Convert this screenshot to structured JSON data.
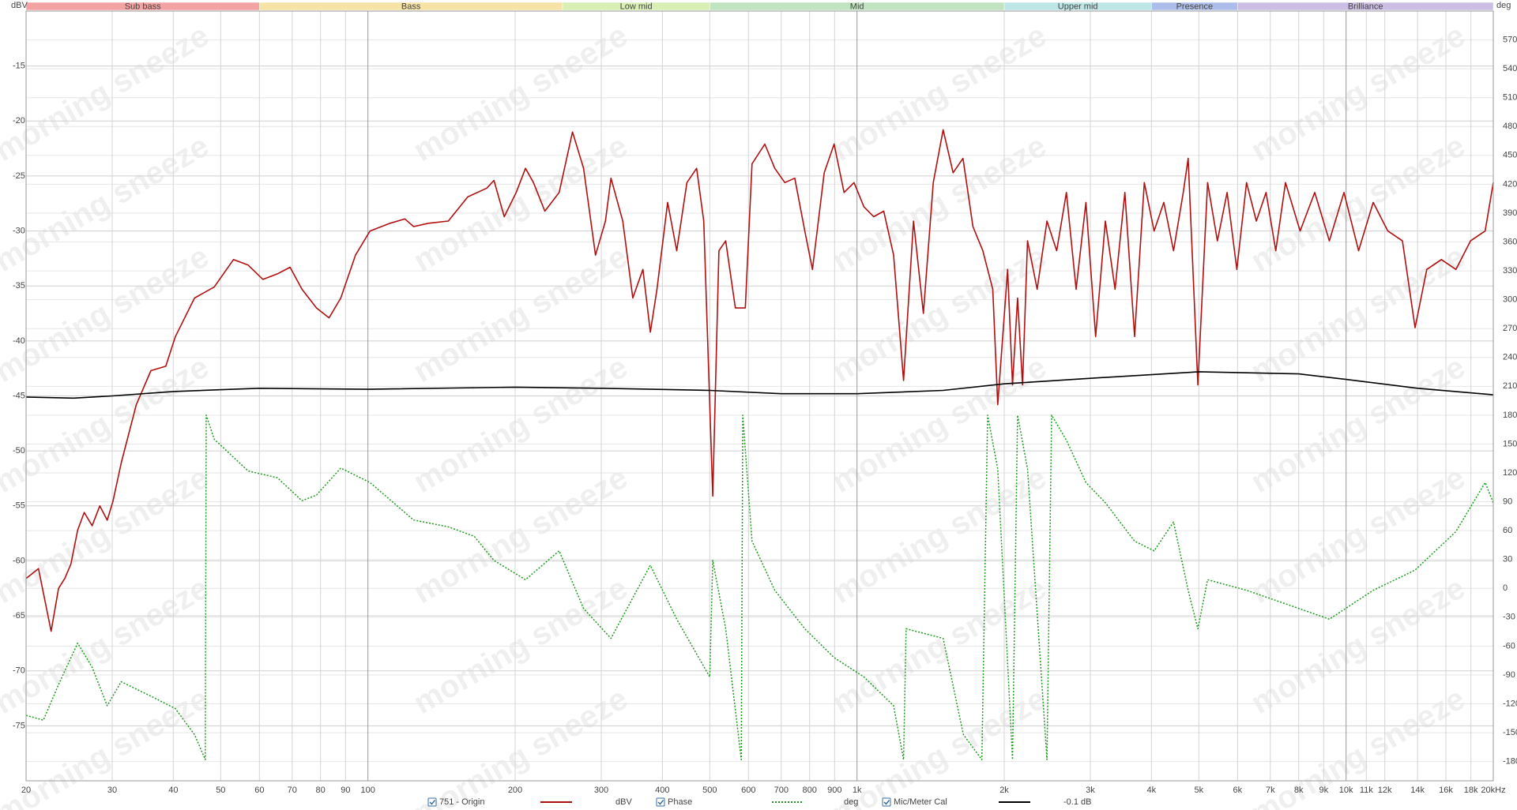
{
  "chart_data": {
    "type": "line",
    "ylabel": "dBV",
    "y2label": "deg",
    "watermark": "morning sneeze",
    "log_x": true,
    "grid": true,
    "xlim": [
      20,
      20000
    ],
    "ylim": [
      -80,
      -10
    ],
    "y2lim": [
      -200,
      600
    ],
    "xticks": [
      20,
      30,
      40,
      50,
      60,
      70,
      80,
      90,
      100,
      200,
      300,
      400,
      500,
      600,
      700,
      800,
      900,
      {
        "value": 1000,
        "label": "1k"
      },
      {
        "value": 2000,
        "label": "2k"
      },
      {
        "value": 3000,
        "label": "3k"
      },
      {
        "value": 4000,
        "label": "4k"
      },
      {
        "value": 5000,
        "label": "5k"
      },
      {
        "value": 6000,
        "label": "6k"
      },
      {
        "value": 7000,
        "label": "7k"
      },
      {
        "value": 8000,
        "label": "8k"
      },
      {
        "value": 9000,
        "label": "9k"
      },
      {
        "value": 10000,
        "label": "10k"
      },
      {
        "value": 11000,
        "label": "11k"
      },
      {
        "value": 12000,
        "label": "12k"
      },
      {
        "value": 14000,
        "label": "14k"
      },
      {
        "value": 16000,
        "label": "16k"
      },
      {
        "value": 18000,
        "label": "18k"
      },
      {
        "value": 20000,
        "label": "20kHz"
      }
    ],
    "yticks": [
      -75,
      -70,
      -65,
      -60,
      -55,
      -50,
      -45,
      -40,
      -35,
      -30,
      -25,
      -20,
      -15
    ],
    "y2ticks": [
      -180,
      -150,
      -120,
      -90,
      -60,
      -30,
      0,
      30,
      60,
      90,
      120,
      150,
      180,
      210,
      240,
      270,
      300,
      330,
      360,
      390,
      420,
      450,
      480,
      510,
      540,
      570
    ],
    "bands": [
      {
        "name": "Sub bass",
        "from": 20,
        "to": 60,
        "color": "#f4a3a3"
      },
      {
        "name": "Bass",
        "from": 60,
        "to": 250,
        "color": "#f7e3a6"
      },
      {
        "name": "Low mid",
        "from": 250,
        "to": 500,
        "color": "#d9efb4"
      },
      {
        "name": "Mid",
        "from": 500,
        "to": 2000,
        "color": "#bfe4bf"
      },
      {
        "name": "Upper mid",
        "from": 2000,
        "to": 4000,
        "color": "#bde6e6"
      },
      {
        "name": "Presence",
        "from": 4000,
        "to": 6000,
        "color": "#adbdea"
      },
      {
        "name": "Brilliance",
        "from": 6000,
        "to": 20000,
        "color": "#cbbde3"
      }
    ],
    "series": [
      {
        "name": "751 - Origin",
        "legend_note": "dBV",
        "color": "#b01010",
        "axis": "y",
        "dash": false,
        "x": [
          20,
          21.2,
          22.5,
          23.3,
          24,
          24.7,
          25.5,
          26.3,
          27.3,
          28.3,
          29.3,
          30.1,
          31.3,
          33.6,
          36,
          38.6,
          40.4,
          44.2,
          48.5,
          53.1,
          56.9,
          61,
          65.3,
          69.3,
          73.3,
          78.5,
          83.3,
          88,
          94.3,
          101,
          111,
          119,
          124,
          133,
          146,
          160,
          175,
          181,
          190,
          201,
          210,
          218,
          230,
          246,
          262,
          276,
          292,
          306,
          314,
          332,
          348,
          365,
          378,
          390,
          410,
          428,
          449,
          470,
          486,
          507,
          522,
          539,
          564,
          591,
          610,
          648,
          679,
          712,
          746,
          782,
          811,
          857,
          898,
          941,
          986,
          1033,
          1082,
          1134,
          1188,
          1245,
          1305,
          1367,
          1432,
          1500,
          1572,
          1647,
          1726,
          1808,
          1895,
          1940,
          2032,
          2080,
          2130,
          2180,
          2232,
          2336,
          2446,
          2560,
          2680,
          2806,
          2938,
          3076,
          3220,
          3371,
          3529,
          3695,
          3868,
          4050,
          4240,
          4438,
          4647,
          4755,
          4978,
          5211,
          5456,
          5712,
          5980,
          6260,
          6554,
          6861,
          7183,
          7520,
          8055,
          8629,
          9243,
          9901,
          10606,
          11361,
          12170,
          13037,
          13837,
          14620,
          15661,
          16776,
          17970,
          19250,
          20000
        ],
        "values": [
          -61.6,
          -60.7,
          -66.4,
          -62.5,
          -61.6,
          -60.3,
          -57.2,
          -55.6,
          -56.8,
          -55,
          -56.3,
          -54.6,
          -51.1,
          -45.8,
          -42.7,
          -42.3,
          -39.6,
          -36.1,
          -35.1,
          -32.6,
          -33.1,
          -34.4,
          -33.9,
          -33.3,
          -35.3,
          -37,
          -37.9,
          -36.1,
          -32.2,
          -30,
          -29.3,
          -28.9,
          -29.6,
          -29.3,
          -29.1,
          -26.9,
          -26.1,
          -25.4,
          -28.7,
          -26.5,
          -24.3,
          -25.6,
          -28.2,
          -26.5,
          -21,
          -24.3,
          -32.2,
          -29.1,
          -25.2,
          -29.1,
          -36.1,
          -33.5,
          -39.2,
          -35.3,
          -27.4,
          -31.8,
          -25.6,
          -24.3,
          -29.1,
          -54.1,
          -31.8,
          -30.9,
          -37,
          -37,
          -23.9,
          -22.1,
          -24.3,
          -25.6,
          -25.2,
          -30,
          -33.5,
          -24.7,
          -22.1,
          -26.5,
          -25.6,
          -27.8,
          -28.7,
          -28.2,
          -32.2,
          -43.6,
          -29.1,
          -37.5,
          -25.6,
          -20.8,
          -24.7,
          -23.4,
          -29.6,
          -31.8,
          -35.3,
          -45.8,
          -33.5,
          -44,
          -36.1,
          -44,
          -30.9,
          -35.3,
          -29.1,
          -31.8,
          -26.5,
          -35.3,
          -27.4,
          -39.6,
          -29.1,
          -35.3,
          -26.5,
          -39.6,
          -25.6,
          -30,
          -27.4,
          -31.8,
          -26.5,
          -23.4,
          -44,
          -25.6,
          -30.9,
          -26.5,
          -33.5,
          -25.6,
          -29.1,
          -26.5,
          -31.8,
          -25.6,
          -30,
          -26.5,
          -30.9,
          -26.5,
          -31.8,
          -27.4,
          -30,
          -30.9,
          -38.8,
          -33.5,
          -32.6,
          -33.5,
          -30.9,
          -30,
          -25.6
        ]
      },
      {
        "name": "Phase",
        "legend_note": "deg",
        "color": "#1f9a1f",
        "axis": "y2",
        "dash": true,
        "x": [
          20,
          21.7,
          23.3,
          25.5,
          27.3,
          29.3,
          31.3,
          36,
          40.4,
          44.2,
          46.5,
          46.7,
          48.5,
          56.9,
          65.3,
          73.3,
          78.5,
          88,
          101,
          124,
          146,
          165,
          181,
          210,
          246,
          276,
          314,
          378,
          428,
          500,
          507,
          539,
          580,
          584,
          610,
          679,
          782,
          898,
          1033,
          1188,
          1245,
          1260,
          1500,
          1650,
          1800,
          1850,
          1940,
          2080,
          2130,
          2232,
          2446,
          2500,
          2680,
          2938,
          3220,
          3695,
          4050,
          4438,
          4755,
          4978,
          5211,
          6260,
          7520,
          9243,
          11361,
          13837,
          16776,
          19250,
          20000
        ],
        "values": [
          -132,
          -137,
          -100,
          -57,
          -82,
          -122,
          -97,
          -112,
          -125,
          -152,
          -178,
          180,
          155,
          122,
          115,
          91,
          97,
          125,
          110,
          71,
          64,
          54,
          29,
          9,
          39,
          -21,
          -52,
          24,
          -32,
          -92,
          29,
          -42,
          -178,
          180,
          49,
          -2,
          -42,
          -72,
          -92,
          -122,
          -178,
          -42,
          -52,
          -152,
          -178,
          180,
          124,
          -178,
          180,
          124,
          -178,
          180,
          154,
          110,
          89,
          49,
          39,
          69,
          -2,
          -42,
          9,
          -2,
          -16,
          -32,
          -2,
          19,
          59,
          110,
          89
        ]
      },
      {
        "name": "Mic/Meter Cal",
        "legend_note": "-0.1 dB",
        "color": "#000000",
        "axis": "y",
        "dash": false,
        "x": [
          20,
          25,
          30,
          40,
          60,
          100,
          200,
          300,
          500,
          700,
          1000,
          1500,
          2000,
          3000,
          5000,
          8000,
          10000,
          14000,
          20000
        ],
        "values": [
          -45.1,
          -45.2,
          -45,
          -44.6,
          -44.3,
          -44.4,
          -44.2,
          -44.3,
          -44.5,
          -44.8,
          -44.8,
          -44.5,
          -43.9,
          -43.4,
          -42.8,
          -43,
          -43.5,
          -44.3,
          -44.9
        ]
      }
    ]
  }
}
